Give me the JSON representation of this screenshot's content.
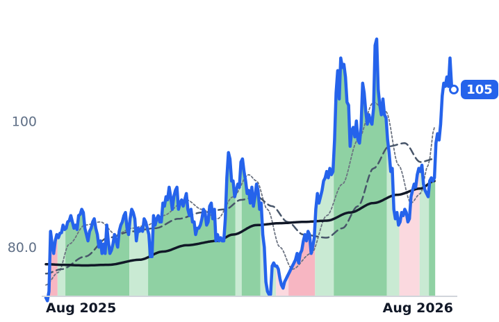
{
  "chart_data": {
    "type": "line",
    "title": "",
    "xlabel": "",
    "ylabel": "",
    "x_ticks": [
      "Aug 2025",
      "Aug 2026"
    ],
    "y_ticks": [
      {
        "value": 80,
        "label": "80.0"
      },
      {
        "value": 100,
        "label": "100"
      }
    ],
    "ylim": [
      70,
      117
    ],
    "grid": false,
    "last_value_label": "105",
    "colors": {
      "price": "#2563eb",
      "ma_long": "#111827",
      "ma_mid": "#475569",
      "ma_short": "#6b7280",
      "bar_green": "#8fd1a3",
      "bar_green_light": "#c9ead3",
      "bar_red": "#f7b6c2",
      "bar_red_light": "#fbd9df",
      "axis": "#d1d5db",
      "badge": "#2563eb"
    },
    "bands": [
      {
        "start": 0,
        "end": 7,
        "tone": "red"
      },
      {
        "start": 8,
        "end": 12,
        "tone": "green_light"
      },
      {
        "start": 13,
        "end": 53,
        "tone": "green"
      },
      {
        "start": 54,
        "end": 65,
        "tone": "green_light"
      },
      {
        "start": 66,
        "end": 121,
        "tone": "green"
      },
      {
        "start": 122,
        "end": 125,
        "tone": "green_light"
      },
      {
        "start": 126,
        "end": 137,
        "tone": "green"
      },
      {
        "start": 138,
        "end": 147,
        "tone": "green_light"
      },
      {
        "start": 148,
        "end": 155,
        "tone": "red_light"
      },
      {
        "start": 156,
        "end": 172,
        "tone": "red"
      },
      {
        "start": 173,
        "end": 184,
        "tone": "green_light"
      },
      {
        "start": 185,
        "end": 218,
        "tone": "green"
      },
      {
        "start": 219,
        "end": 226,
        "tone": "green_light"
      },
      {
        "start": 227,
        "end": 239,
        "tone": "red_light"
      },
      {
        "start": 240,
        "end": 245,
        "tone": "green_light"
      },
      {
        "start": 246,
        "end": 249,
        "tone": "green"
      }
    ],
    "series": [
      {
        "key": "price",
        "values": [
          72.0,
          71.5,
          73.0,
          82.5,
          80.5,
          79.0,
          81.0,
          82.0,
          81.5,
          82.2,
          82.3,
          83.5,
          82.8,
          83.0,
          84.0,
          84.2,
          85.0,
          84.0,
          83.0,
          83.5,
          82.8,
          85.0,
          85.2,
          86.0,
          85.5,
          83.0,
          82.0,
          81.0,
          82.5,
          83.0,
          84.0,
          84.5,
          83.0,
          82.0,
          80.0,
          81.0,
          79.0,
          80.5,
          79.0,
          83.5,
          81.0,
          79.0,
          79.5,
          80.5,
          82.0,
          81.0,
          80.0,
          82.5,
          83.5,
          84.0,
          85.0,
          85.5,
          83.0,
          82.0,
          84.5,
          86.0,
          85.5,
          84.5,
          81.0,
          83.0,
          82.5,
          83.0,
          82.5,
          84.5,
          84.0,
          83.0,
          82.0,
          78.5,
          78.5,
          85.0,
          83.5,
          84.5,
          85.0,
          84.0,
          84.0,
          87.0,
          86.5,
          88.0,
          87.5,
          89.5,
          88.0,
          86.0,
          88.0,
          89.0,
          89.5,
          86.0,
          87.0,
          87.5,
          86.5,
          87.5,
          88.5,
          86.0,
          85.0,
          86.0,
          84.0,
          84.0,
          82.0,
          83.0,
          83.0,
          83.5,
          84.5,
          86.0,
          85.5,
          83.5,
          84.0,
          86.5,
          87.0,
          84.5,
          86.0,
          81.0,
          82.0,
          81.0,
          81.5,
          81.0,
          81.0,
          84.5,
          91.0,
          95.0,
          94.0,
          90.5,
          90.5,
          88.0,
          89.0,
          90.0,
          89.5,
          93.5,
          94.0,
          92.0,
          90.5,
          88.5,
          89.0,
          87.0,
          89.5,
          86.5,
          88.0,
          90.0,
          89.0,
          86.0,
          87.0,
          82.0,
          80.0,
          74.5,
          73.0,
          72.5,
          72.5,
          77.0,
          77.5,
          77.0,
          77.0,
          76.5,
          75.0,
          74.0,
          73.5,
          74.5,
          75.0,
          75.5,
          76.0,
          76.5,
          77.0,
          77.5,
          78.0,
          79.0,
          77.5,
          79.0,
          79.5,
          81.0,
          82.0,
          81.0,
          82.5,
          82.0,
          79.0,
          80.0,
          81.5,
          86.0,
          88.5,
          87.0,
          88.0,
          89.0,
          90.5,
          91.0,
          92.0,
          91.0,
          92.5,
          91.5,
          92.0,
          97.0,
          104.5,
          108.0,
          103.5,
          110.0,
          108.5,
          109.0,
          107.0,
          103.0,
          102.5,
          96.0,
          98.5,
          99.0,
          97.5,
          100.0,
          97.0,
          96.5,
          99.0,
          106.0,
          104.5,
          101.5,
          99.5,
          101.0,
          100.0,
          99.5,
          102.0,
          112.0,
          113.0,
          105.0,
          102.5,
          101.0,
          103.5,
          101.0,
          100.5,
          97.0,
          95.0,
          92.0,
          92.5,
          86.0,
          84.5,
          85.5,
          83.5,
          84.0,
          85.5,
          85.0,
          86.0,
          85.5,
          84.0,
          84.5,
          88.0,
          89.0,
          90.0,
          89.5,
          91.5,
          92.5,
          92.0,
          93.0,
          90.0,
          89.0,
          88.5,
          88.0,
          90.5,
          91.0,
          90.5,
          91.0,
          96.5,
          98.0,
          97.0,
          99.5,
          104.0,
          106.0,
          105.5,
          107.0,
          105.5,
          110.0,
          105.5,
          105.0
        ]
      },
      {
        "key": "ma_long",
        "values_sparse": [
          [
            0,
            77.3
          ],
          [
            10,
            77.2
          ],
          [
            25,
            77.1
          ],
          [
            40,
            77.2
          ],
          [
            60,
            78.0
          ],
          [
            75,
            79.3
          ],
          [
            90,
            80.3
          ],
          [
            110,
            81.0
          ],
          [
            120,
            82.0
          ],
          [
            135,
            83.5
          ],
          [
            150,
            83.8
          ],
          [
            165,
            84.0
          ],
          [
            180,
            84.2
          ],
          [
            195,
            85.5
          ],
          [
            210,
            87.0
          ],
          [
            225,
            88.3
          ],
          [
            240,
            89.3
          ],
          [
            249,
            90.5
          ]
        ]
      },
      {
        "key": "ma_mid",
        "values_sparse": [
          [
            0,
            75.8
          ],
          [
            10,
            76.5
          ],
          [
            25,
            78.5
          ],
          [
            40,
            81.5
          ],
          [
            55,
            82.5
          ],
          [
            70,
            83.0
          ],
          [
            85,
            84.5
          ],
          [
            100,
            85.5
          ],
          [
            115,
            86.0
          ],
          [
            125,
            87.5
          ],
          [
            135,
            88.0
          ],
          [
            145,
            86.5
          ],
          [
            155,
            84.0
          ],
          [
            165,
            82.0
          ],
          [
            180,
            81.5
          ],
          [
            190,
            83.0
          ],
          [
            200,
            86.5
          ],
          [
            210,
            92.5
          ],
          [
            220,
            96.0
          ],
          [
            230,
            96.5
          ],
          [
            240,
            93.5
          ],
          [
            249,
            94.0
          ]
        ]
      },
      {
        "key": "ma_short",
        "values_sparse": [
          [
            0,
            74.0
          ],
          [
            8,
            76.0
          ],
          [
            15,
            80.5
          ],
          [
            25,
            83.5
          ],
          [
            35,
            84.0
          ],
          [
            45,
            82.0
          ],
          [
            55,
            83.0
          ],
          [
            65,
            83.5
          ],
          [
            75,
            85.0
          ],
          [
            90,
            87.5
          ],
          [
            100,
            86.0
          ],
          [
            110,
            84.5
          ],
          [
            120,
            88.0
          ],
          [
            130,
            91.5
          ],
          [
            135,
            90.5
          ],
          [
            142,
            86.0
          ],
          [
            150,
            80.0
          ],
          [
            158,
            76.5
          ],
          [
            170,
            79.0
          ],
          [
            180,
            85.0
          ],
          [
            190,
            90.0
          ],
          [
            200,
            97.0
          ],
          [
            210,
            103.0
          ],
          [
            218,
            101.5
          ],
          [
            226,
            93.0
          ],
          [
            234,
            87.0
          ],
          [
            240,
            88.5
          ],
          [
            245,
            93.0
          ],
          [
            249,
            99.0
          ]
        ]
      }
    ]
  }
}
